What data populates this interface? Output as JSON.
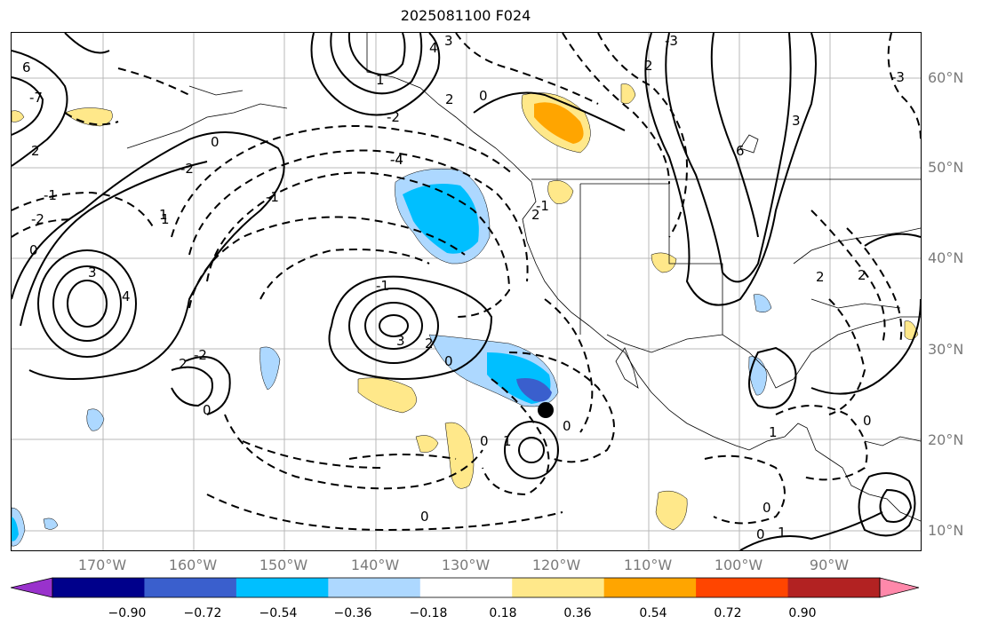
{
  "title": "2025081100 F024",
  "lat_labels": [
    "60°N",
    "50°N",
    "40°N",
    "30°N",
    "20°N",
    "10°N"
  ],
  "lon_labels": [
    "170°W",
    "160°W",
    "150°W",
    "140°W",
    "130°W",
    "120°W",
    "110°W",
    "100°W",
    "90°W"
  ],
  "colorbar": {
    "tick_labels": [
      "−0.90",
      "−0.72",
      "−0.54",
      "−0.36",
      "−0.18",
      "0.18",
      "0.36",
      "0.54",
      "0.72",
      "0.90"
    ],
    "colors": [
      "#9932cc",
      "#00008b",
      "#3a5fcd",
      "#00bfff",
      "#add8ff",
      "#ffffff",
      "#ffe88a",
      "#ffa500",
      "#ff4500",
      "#b22222",
      "#ff88aa"
    ]
  },
  "contour_labels": [
    "4",
    "3",
    "2",
    "1",
    "0",
    "-1",
    "-2",
    "-3",
    "-4",
    "6",
    "3",
    "2",
    "1",
    "0",
    "2",
    "3",
    "4",
    "-1",
    "-2",
    "0",
    "1",
    "2",
    "-2",
    "0",
    "-1",
    "0",
    "1",
    "0",
    "-1",
    "2",
    "-3",
    "2",
    "3",
    "6",
    "0",
    "1",
    "0",
    "2",
    "0",
    "1",
    "0",
    "0",
    "-2",
    "-4",
    "-7",
    "2"
  ],
  "storm_marker": "tropical-cyclone-center"
}
